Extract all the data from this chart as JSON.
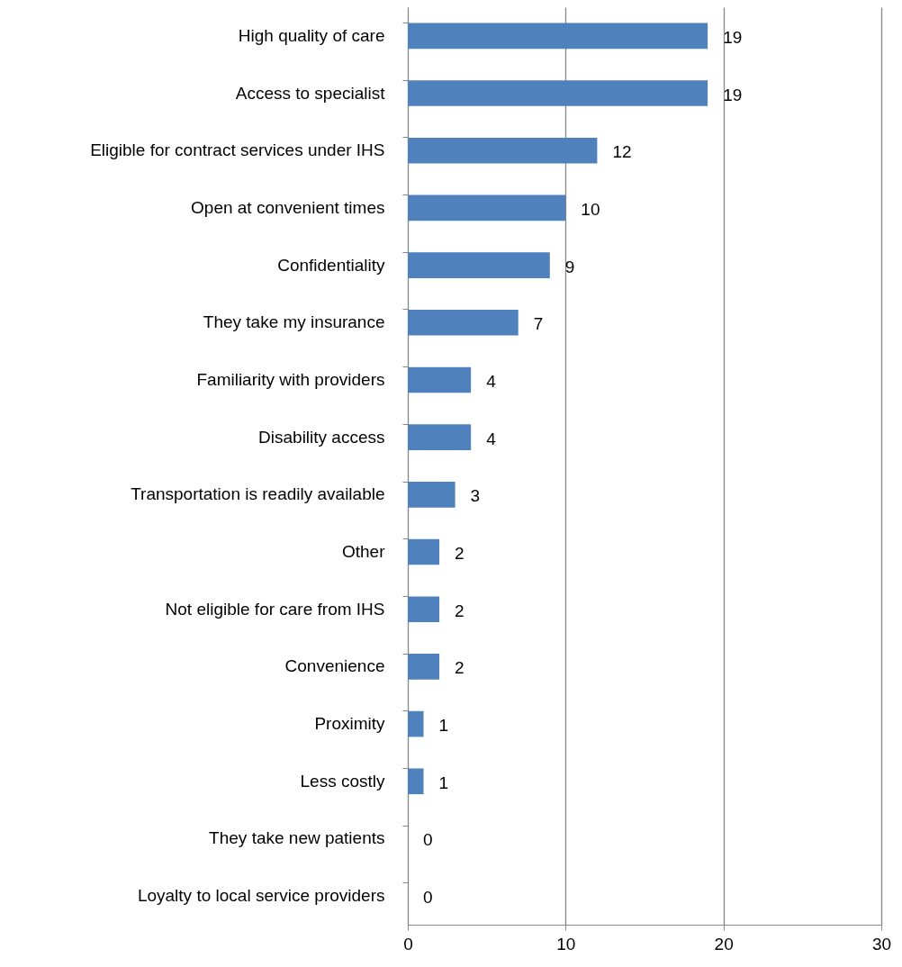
{
  "chart_data": {
    "type": "bar",
    "orientation": "horizontal",
    "categories": [
      "High quality of care",
      "Access to specialist",
      "Eligible for contract services under IHS",
      "Open at convenient times",
      "Confidentiality",
      "They take my insurance",
      "Familiarity with providers",
      "Disability access",
      "Transportation is readily available",
      "Other",
      "Not eligible for care from IHS",
      "Convenience",
      "Proximity",
      "Less costly",
      "They take new patients",
      "Loyalty to local service providers"
    ],
    "values": [
      19,
      19,
      12,
      10,
      9,
      7,
      4,
      4,
      3,
      2,
      2,
      2,
      1,
      1,
      0,
      0
    ],
    "color": "#4f81bd",
    "xlim": [
      0,
      30
    ],
    "xticks": [
      0,
      10,
      20,
      30
    ],
    "grid": "x",
    "data_labels": true
  }
}
